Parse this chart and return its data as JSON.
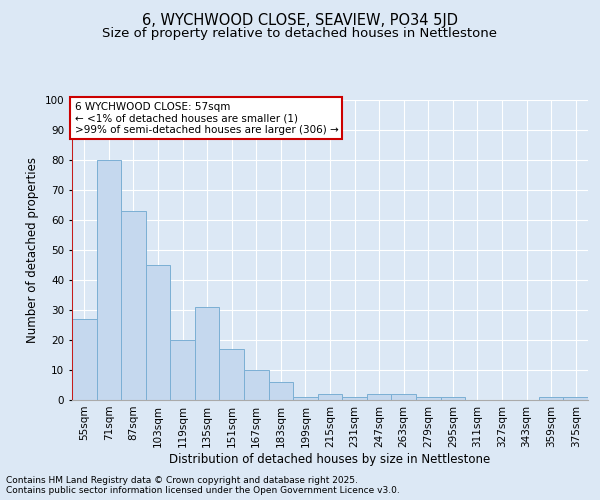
{
  "title_line1": "6, WYCHWOOD CLOSE, SEAVIEW, PO34 5JD",
  "title_line2": "Size of property relative to detached houses in Nettlestone",
  "xlabel": "Distribution of detached houses by size in Nettlestone",
  "ylabel": "Number of detached properties",
  "categories": [
    "55sqm",
    "71sqm",
    "87sqm",
    "103sqm",
    "119sqm",
    "135sqm",
    "151sqm",
    "167sqm",
    "183sqm",
    "199sqm",
    "215sqm",
    "231sqm",
    "247sqm",
    "263sqm",
    "279sqm",
    "295sqm",
    "311sqm",
    "327sqm",
    "343sqm",
    "359sqm",
    "375sqm"
  ],
  "values": [
    27,
    80,
    63,
    45,
    20,
    31,
    17,
    10,
    6,
    1,
    2,
    1,
    2,
    2,
    1,
    1,
    0,
    0,
    0,
    1,
    1
  ],
  "bar_color": "#c5d8ee",
  "bar_edge_color": "#7bafd4",
  "annotation_box_color": "#ffffff",
  "annotation_box_edge": "#cc0000",
  "annotation_line1": "6 WYCHWOOD CLOSE: 57sqm",
  "annotation_line2": "← <1% of detached houses are smaller (1)",
  "annotation_line3": ">99% of semi-detached houses are larger (306) →",
  "ylim": [
    0,
    100
  ],
  "yticks": [
    0,
    10,
    20,
    30,
    40,
    50,
    60,
    70,
    80,
    90,
    100
  ],
  "footer_line1": "Contains HM Land Registry data © Crown copyright and database right 2025.",
  "footer_line2": "Contains public sector information licensed under the Open Government Licence v3.0.",
  "background_color": "#dce8f5",
  "plot_bg_color": "#dce8f5",
  "title_fontsize": 10.5,
  "subtitle_fontsize": 9.5,
  "axis_label_fontsize": 8.5,
  "tick_fontsize": 7.5,
  "annotation_fontsize": 7.5,
  "footer_fontsize": 6.5
}
